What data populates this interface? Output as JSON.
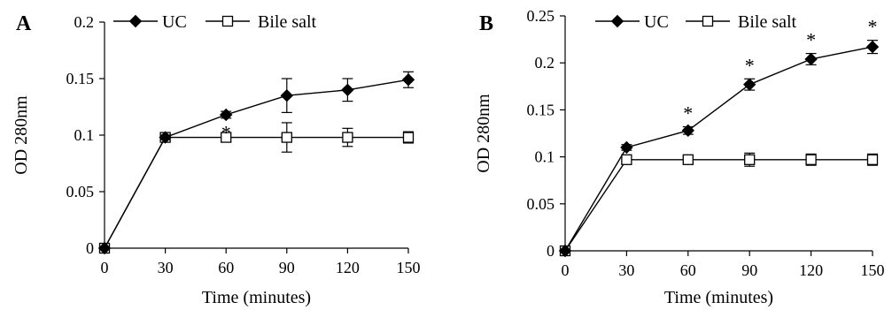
{
  "chart_data": [
    {
      "type": "line",
      "panel_label": "A",
      "xlabel": "Time (minutes)",
      "ylabel": "OD 280nm",
      "x": [
        0,
        30,
        60,
        90,
        120,
        150
      ],
      "xticks": [
        "0",
        "30",
        "60",
        "90",
        "120",
        "150"
      ],
      "xlim": [
        0,
        150
      ],
      "ylim": [
        0,
        0.2
      ],
      "yticks": [
        "0",
        "0.05",
        "0.1",
        "0.15",
        "0.2"
      ],
      "yticks_values": [
        0,
        0.05,
        0.1,
        0.15,
        0.2
      ],
      "grid": false,
      "legend": "top",
      "series": [
        {
          "name": "UC",
          "marker": "filled-diamond",
          "values": [
            0,
            0.098,
            0.118,
            0.135,
            0.14,
            0.149
          ],
          "errors": [
            0,
            0.002,
            0.003,
            0.015,
            0.01,
            0.007
          ]
        },
        {
          "name": "Bile salt",
          "marker": "open-square",
          "values": [
            0,
            0.098,
            0.098,
            0.098,
            0.098,
            0.098
          ],
          "errors": [
            0,
            0.003,
            0.004,
            0.013,
            0.008,
            0.005
          ]
        }
      ],
      "annotations": [
        {
          "text": "*",
          "x": 60
        }
      ]
    },
    {
      "type": "line",
      "panel_label": "B",
      "xlabel": "Time (minutes)",
      "ylabel": "OD 280nm",
      "x": [
        0,
        30,
        60,
        90,
        120,
        150
      ],
      "xticks": [
        "0",
        "30",
        "60",
        "90",
        "120",
        "150"
      ],
      "xlim": [
        0,
        150
      ],
      "ylim": [
        0,
        0.25
      ],
      "yticks": [
        "0",
        "0.05",
        "0.1",
        "0.15",
        "0.2",
        "0.25"
      ],
      "yticks_values": [
        0,
        0.05,
        0.1,
        0.15,
        0.2,
        0.25
      ],
      "grid": false,
      "legend": "top",
      "series": [
        {
          "name": "UC",
          "marker": "filled-diamond",
          "values": [
            0,
            0.11,
            0.128,
            0.177,
            0.204,
            0.217
          ],
          "errors": [
            0,
            0.003,
            0.004,
            0.006,
            0.006,
            0.007
          ]
        },
        {
          "name": "Bile salt",
          "marker": "open-square",
          "values": [
            0,
            0.097,
            0.097,
            0.097,
            0.097,
            0.097
          ],
          "errors": [
            0,
            0.004,
            0.003,
            0.007,
            0.006,
            0.006
          ]
        }
      ],
      "annotations": [
        {
          "text": "*",
          "x": 60
        },
        {
          "text": "*",
          "x": 90
        },
        {
          "text": "*",
          "x": 120
        },
        {
          "text": "*",
          "x": 150
        }
      ]
    }
  ]
}
